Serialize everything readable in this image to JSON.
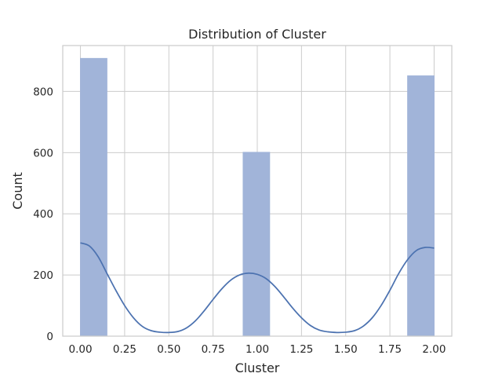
{
  "chart_data": {
    "type": "bar",
    "title": "Distribution of Cluster",
    "xlabel": "Cluster",
    "ylabel": "Count",
    "xlim": [
      -0.1,
      2.1
    ],
    "ylim": [
      0,
      950
    ],
    "x_ticks": [
      0.0,
      0.25,
      0.5,
      0.75,
      1.0,
      1.25,
      1.5,
      1.75,
      2.0
    ],
    "x_tick_labels": [
      "0.00",
      "0.25",
      "0.50",
      "0.75",
      "1.00",
      "1.25",
      "1.50",
      "1.75",
      "2.00"
    ],
    "y_ticks": [
      0,
      200,
      400,
      600,
      800
    ],
    "y_tick_labels": [
      "0",
      "200",
      "400",
      "600",
      "800"
    ],
    "grid": true,
    "bar_color": "#a1b4d9",
    "kde_color": "#4c72b0",
    "bars": [
      {
        "x0": 0.0,
        "x1": 0.15,
        "value": 908
      },
      {
        "x0": 0.92,
        "x1": 1.07,
        "value": 601
      },
      {
        "x0": 1.85,
        "x1": 2.0,
        "value": 851
      }
    ],
    "kde_line": {
      "x": [
        0.0,
        0.05,
        0.1,
        0.15,
        0.2,
        0.25,
        0.3,
        0.35,
        0.4,
        0.45,
        0.5,
        0.55,
        0.6,
        0.65,
        0.7,
        0.75,
        0.8,
        0.85,
        0.9,
        0.95,
        1.0,
        1.05,
        1.1,
        1.15,
        1.2,
        1.25,
        1.3,
        1.35,
        1.4,
        1.45,
        1.5,
        1.55,
        1.6,
        1.65,
        1.7,
        1.75,
        1.8,
        1.85,
        1.9,
        1.95,
        2.0
      ],
      "y": [
        305,
        295,
        260,
        205,
        150,
        100,
        60,
        32,
        18,
        13,
        12,
        15,
        27,
        50,
        83,
        120,
        155,
        183,
        200,
        206,
        202,
        188,
        162,
        128,
        92,
        60,
        35,
        20,
        14,
        12,
        13,
        18,
        33,
        60,
        100,
        150,
        205,
        250,
        280,
        290,
        288
      ]
    }
  }
}
